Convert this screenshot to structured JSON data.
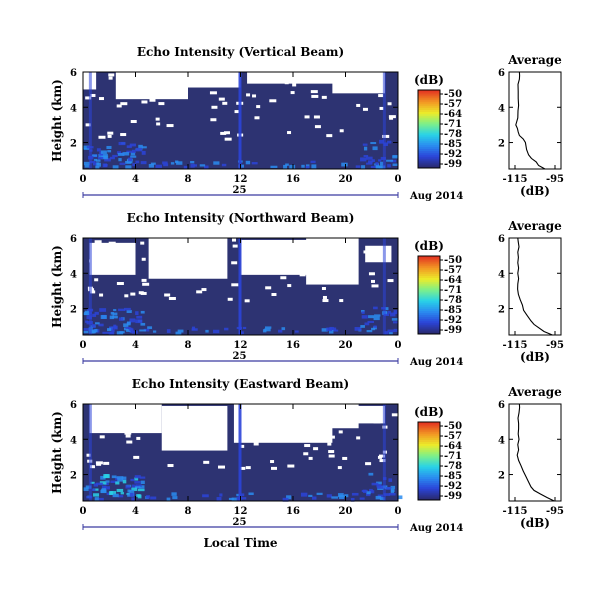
{
  "chart_data": [
    {
      "type": "heatmap",
      "title": "Echo Intensity (Vertical Beam)",
      "ylabel": "Height (km)",
      "x_ticks": [
        "0",
        "4",
        "8",
        "12",
        "16",
        "20",
        "0"
      ],
      "y_ticks": [
        "2",
        "4",
        "6"
      ],
      "ylim": [
        0.5,
        6
      ],
      "xlim": [
        0,
        24
      ],
      "date_day": "25",
      "date_label": "Aug 2014",
      "colorbar": {
        "unit": "(dB)",
        "ticks": [
          "-50",
          "-57",
          "-64",
          "-71",
          "-78",
          "-85",
          "-92",
          "-99"
        ]
      },
      "profile": {
        "title": "Average",
        "xlabel": "(dB)",
        "x_ticks": [
          "-115",
          "-95"
        ],
        "y_ticks": [
          "2",
          "4",
          "6"
        ],
        "xlim": [
          -118,
          -92
        ],
        "ylim": [
          0.5,
          6
        ],
        "x": [
          -100.0,
          -103.2,
          -104.4,
          -106.8,
          -108.2,
          -109.2,
          -109.8,
          -110.9,
          -112.8,
          -113.4,
          -113.8,
          -114.6,
          -113.6,
          -113.5,
          -113.2,
          -113.4,
          -113.4,
          -113.5,
          -112.8,
          -112.7,
          -112.8
        ],
        "y": [
          0.5,
          0.7,
          0.9,
          1.1,
          1.3,
          1.6,
          2.0,
          2.2,
          2.4,
          2.6,
          2.8,
          3.0,
          3.4,
          3.8,
          4.1,
          4.5,
          4.9,
          5.3,
          5.6,
          5.8,
          6.0
        ]
      }
    },
    {
      "type": "heatmap",
      "title": "Echo Intensity (Northward Beam)",
      "ylabel": "Height (km)",
      "x_ticks": [
        "0",
        "4",
        "8",
        "12",
        "16",
        "20",
        "0"
      ],
      "y_ticks": [
        "2",
        "4",
        "6"
      ],
      "ylim": [
        0.5,
        6
      ],
      "xlim": [
        0,
        24
      ],
      "date_day": "25",
      "date_label": "Aug 2014",
      "colorbar": {
        "unit": "(dB)",
        "ticks": [
          "-50",
          "-57",
          "-64",
          "-71",
          "-78",
          "-85",
          "-92",
          "-99"
        ]
      },
      "profile": {
        "title": "Average",
        "xlabel": "(dB)",
        "x_ticks": [
          "-115",
          "-95"
        ],
        "y_ticks": [
          "2",
          "4",
          "6"
        ],
        "xlim": [
          -118,
          -92
        ],
        "ylim": [
          0.5,
          6
        ],
        "x": [
          -96.3,
          -100.5,
          -103.0,
          -105.5,
          -107.0,
          -108.9,
          -110.7,
          -111.3,
          -112.4,
          -113.3,
          -113.7,
          -113.6,
          -113.2,
          -113.6,
          -113.2,
          -113.6,
          -113.3,
          -113.6,
          -113.0,
          -113.4,
          -113.6
        ],
        "y": [
          0.5,
          0.7,
          0.9,
          1.1,
          1.3,
          1.6,
          1.9,
          2.2,
          2.5,
          2.8,
          3.1,
          3.4,
          3.7,
          4.0,
          4.3,
          4.6,
          4.9,
          5.2,
          5.5,
          5.8,
          6.0
        ]
      }
    },
    {
      "type": "heatmap",
      "title": "Echo Intensity (Eastward Beam)",
      "ylabel": "Height (km)",
      "xlabel": "Local Time",
      "x_ticks": [
        "0",
        "4",
        "8",
        "12",
        "16",
        "20",
        "0"
      ],
      "y_ticks": [
        "2",
        "4",
        "6"
      ],
      "ylim": [
        0.5,
        6
      ],
      "xlim": [
        0,
        24
      ],
      "date_day": "25",
      "date_label": "Aug 2014",
      "colorbar": {
        "unit": "(dB)",
        "ticks": [
          "-50",
          "-57",
          "-64",
          "-71",
          "-78",
          "-85",
          "-92",
          "-99"
        ]
      },
      "profile": {
        "title": "Average",
        "xlabel": "(dB)",
        "x_ticks": [
          "-115",
          "-95"
        ],
        "y_ticks": [
          "2",
          "4",
          "6"
        ],
        "xlim": [
          -118,
          -92
        ],
        "ylim": [
          0.5,
          6
        ],
        "x": [
          -95.4,
          -99.0,
          -102.4,
          -105.5,
          -107.0,
          -108.3,
          -109.6,
          -110.9,
          -112.0,
          -113.2,
          -113.9,
          -113.2,
          -113.6,
          -113.0,
          -113.4,
          -113.2,
          -113.2,
          -113.5,
          -113.0,
          -112.7,
          -112.8
        ],
        "y": [
          0.5,
          0.7,
          0.9,
          1.1,
          1.3,
          1.6,
          1.9,
          2.2,
          2.5,
          2.8,
          3.1,
          3.4,
          3.7,
          4.0,
          4.3,
          4.6,
          4.9,
          5.2,
          5.5,
          5.8,
          6.0
        ]
      }
    }
  ],
  "colors": {
    "background_echo": "#2d3372",
    "colormap": [
      "#2a2a6e",
      "#2b44d8",
      "#2a8cf0",
      "#29d2e8",
      "#7cf08a",
      "#ecec2a",
      "#f29a24",
      "#e43a22"
    ],
    "profile_line": "#000000",
    "time_bar": "#3a3aa0"
  }
}
